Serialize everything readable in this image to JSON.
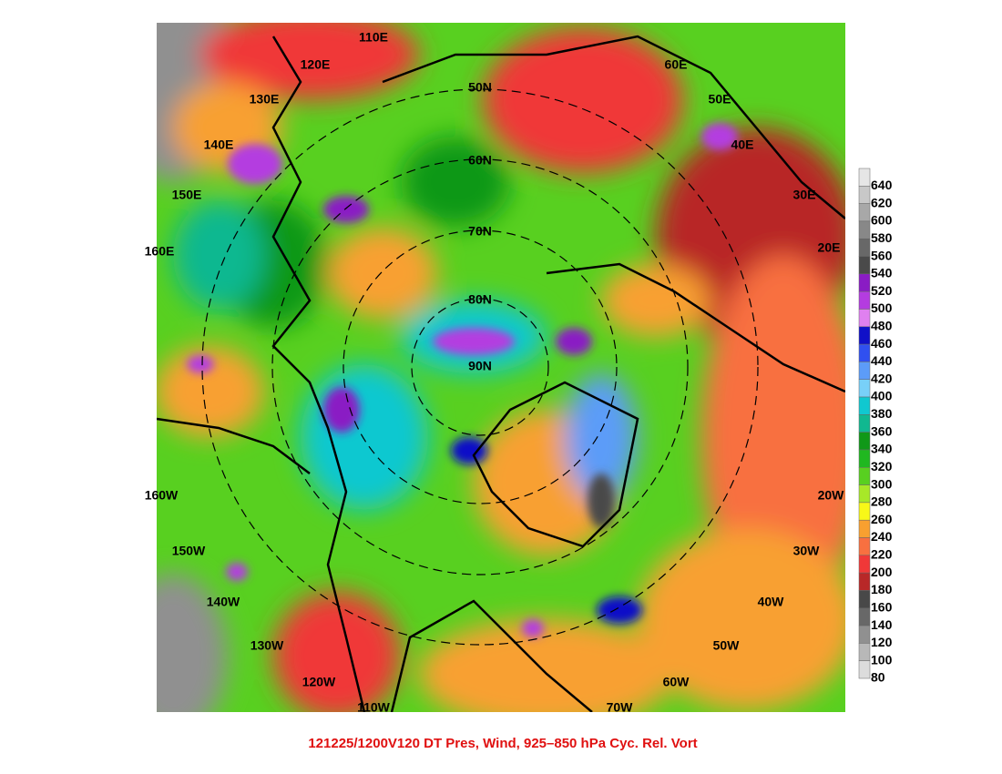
{
  "map": {
    "caption": "121225/1200V120 DT Pres, Wind, 925–850 hPa Cyc. Rel. Vort",
    "graticule_labels": [
      "110E",
      "120E",
      "130E",
      "140E",
      "150E",
      "160E",
      "50N",
      "60N",
      "70N",
      "80N",
      "90N",
      "60E",
      "50E",
      "40E",
      "30E",
      "20E",
      "160W",
      "150W",
      "140W",
      "130W",
      "120W",
      "110W",
      "70W",
      "60W",
      "50W",
      "40W",
      "30W",
      "20W"
    ],
    "colorbar": [
      {
        "value": 640,
        "color": "#e6e6e6"
      },
      {
        "value": 620,
        "color": "#c8c8c8"
      },
      {
        "value": 600,
        "color": "#a8a8a8"
      },
      {
        "value": 580,
        "color": "#888888"
      },
      {
        "value": 560,
        "color": "#686868"
      },
      {
        "value": 540,
        "color": "#4a4a4a"
      },
      {
        "value": 520,
        "color": "#8a1cc4"
      },
      {
        "value": 500,
        "color": "#b43ce0"
      },
      {
        "value": 480,
        "color": "#e080f0"
      },
      {
        "value": 460,
        "color": "#1010c8"
      },
      {
        "value": 440,
        "color": "#3050f0"
      },
      {
        "value": 420,
        "color": "#5c9cf8"
      },
      {
        "value": 400,
        "color": "#78d0f8"
      },
      {
        "value": 380,
        "color": "#10c8d0"
      },
      {
        "value": 360,
        "color": "#10b890"
      },
      {
        "value": 340,
        "color": "#109818"
      },
      {
        "value": 320,
        "color": "#20b820"
      },
      {
        "value": 300,
        "color": "#58d020"
      },
      {
        "value": 280,
        "color": "#a8e828"
      },
      {
        "value": 260,
        "color": "#f8f818"
      },
      {
        "value": 240,
        "color": "#f8a030"
      },
      {
        "value": 220,
        "color": "#f87040"
      },
      {
        "value": 200,
        "color": "#f03838"
      },
      {
        "value": 180,
        "color": "#b82828"
      },
      {
        "value": 160,
        "color": "#484848"
      },
      {
        "value": 140,
        "color": "#686868"
      },
      {
        "value": 120,
        "color": "#909090"
      },
      {
        "value": 100,
        "color": "#b8b8b8"
      },
      {
        "value": 80,
        "color": "#dcdcdc"
      }
    ]
  }
}
